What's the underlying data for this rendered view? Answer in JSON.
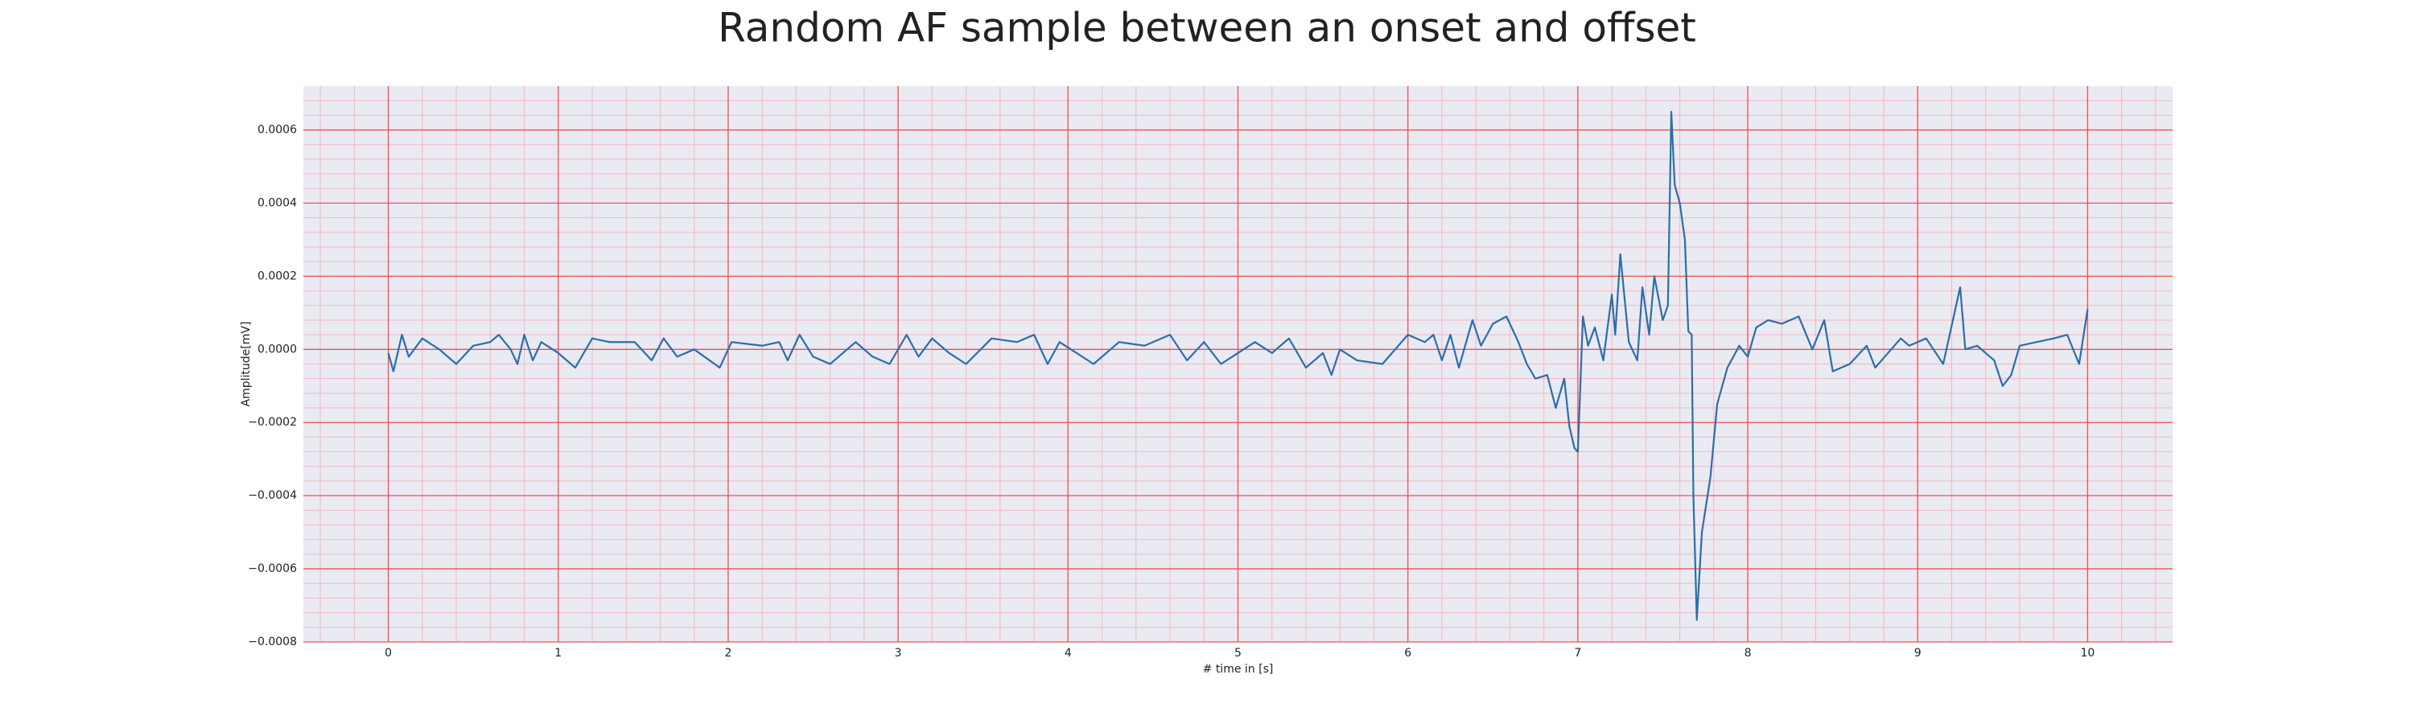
{
  "chart_data": {
    "type": "line",
    "title": "Random AF sample between an onset and offset",
    "xlabel": "# time in [s]",
    "ylabel": "Amplitude[mV]",
    "x": [
      0,
      0.03,
      0.08,
      0.12,
      0.2,
      0.3,
      0.4,
      0.5,
      0.6,
      0.65,
      0.72,
      0.76,
      0.8,
      0.85,
      0.9,
      1.0,
      1.1,
      1.2,
      1.3,
      1.45,
      1.55,
      1.62,
      1.7,
      1.8,
      1.95,
      2.02,
      2.2,
      2.3,
      2.35,
      2.42,
      2.5,
      2.6,
      2.75,
      2.85,
      2.95,
      3.05,
      3.12,
      3.2,
      3.3,
      3.4,
      3.55,
      3.7,
      3.8,
      3.88,
      3.95,
      4.05,
      4.15,
      4.3,
      4.45,
      4.6,
      4.7,
      4.8,
      4.9,
      5.1,
      5.2,
      5.3,
      5.4,
      5.5,
      5.55,
      5.6,
      5.7,
      5.85,
      6.0,
      6.1,
      6.15,
      6.2,
      6.25,
      6.3,
      6.38,
      6.43,
      6.5,
      6.58,
      6.65,
      6.7,
      6.75,
      6.82,
      6.87,
      6.92,
      6.95,
      6.98,
      7.0,
      7.03,
      7.06,
      7.1,
      7.15,
      7.2,
      7.22,
      7.25,
      7.3,
      7.35,
      7.38,
      7.42,
      7.45,
      7.5,
      7.53,
      7.55,
      7.57,
      7.6,
      7.63,
      7.65,
      7.67,
      7.68,
      7.7,
      7.73,
      7.78,
      7.82,
      7.88,
      7.95,
      8.0,
      8.05,
      8.12,
      8.2,
      8.3,
      8.38,
      8.45,
      8.5,
      8.6,
      8.7,
      8.75,
      8.9,
      8.95,
      9.05,
      9.15,
      9.25,
      9.28,
      9.35,
      9.45,
      9.5,
      9.55,
      9.6,
      9.7,
      9.8,
      9.88,
      9.95,
      10.0
    ],
    "series": [
      {
        "color": "#2a6fa8",
        "values": [
          -1e-05,
          -6e-05,
          4e-05,
          -2e-05,
          3e-05,
          0.0,
          -4e-05,
          1e-05,
          2e-05,
          4e-05,
          0.0,
          -4e-05,
          4e-05,
          -3e-05,
          2e-05,
          -1e-05,
          -5e-05,
          3e-05,
          2e-05,
          2e-05,
          -3e-05,
          3e-05,
          -2e-05,
          0.0,
          -5e-05,
          2e-05,
          1e-05,
          2e-05,
          -3e-05,
          4e-05,
          -2e-05,
          -4e-05,
          2e-05,
          -2e-05,
          -4e-05,
          4e-05,
          -2e-05,
          3e-05,
          -1e-05,
          -4e-05,
          3e-05,
          2e-05,
          4e-05,
          -4e-05,
          2e-05,
          -1e-05,
          -4e-05,
          2e-05,
          1e-05,
          4e-05,
          -3e-05,
          2e-05,
          -4e-05,
          2e-05,
          -1e-05,
          3e-05,
          -5e-05,
          -1e-05,
          -7e-05,
          0.0,
          -3e-05,
          -4e-05,
          4e-05,
          2e-05,
          4e-05,
          -3e-05,
          4e-05,
          -5e-05,
          8e-05,
          1e-05,
          7e-05,
          9e-05,
          2e-05,
          -4e-05,
          -8e-05,
          -7e-05,
          -0.00016,
          -8e-05,
          -0.00021,
          -0.00027,
          -0.00028,
          9e-05,
          1e-05,
          6e-05,
          -3e-05,
          0.00015,
          4e-05,
          0.00026,
          2e-05,
          -3e-05,
          0.00017,
          4e-05,
          0.0002,
          8e-05,
          0.00012,
          0.00065,
          0.00045,
          0.0004,
          0.0003,
          5e-05,
          4e-05,
          -0.0004,
          -0.00074,
          -0.0005,
          -0.00035,
          -0.00015,
          -5e-05,
          1e-05,
          -2e-05,
          6e-05,
          8e-05,
          7e-05,
          9e-05,
          0.0,
          8e-05,
          -6e-05,
          -4e-05,
          1e-05,
          -5e-05,
          3e-05,
          1e-05,
          3e-05,
          -4e-05,
          0.00017,
          0.0,
          1e-05,
          -3e-05,
          -0.0001,
          -7e-05,
          1e-05,
          2e-05,
          3e-05,
          4e-05,
          -4e-05,
          0.00011
        ]
      }
    ],
    "xlim": [
      -0.5,
      10.5
    ],
    "ylim": [
      -0.0008,
      0.00072
    ],
    "xticks": [
      0,
      1,
      2,
      3,
      4,
      5,
      6,
      7,
      8,
      9,
      10
    ],
    "yticks": [
      {
        "value": -0.0008,
        "label": "−0.0008"
      },
      {
        "value": -0.0006,
        "label": "−0.0006"
      },
      {
        "value": -0.0004,
        "label": "−0.0004"
      },
      {
        "value": -0.0002,
        "label": "−0.0002"
      },
      {
        "value": 0,
        "label": "0.0000"
      },
      0.0002,
      0.0004,
      0.0006
    ],
    "grid": true,
    "minor_grid": true
  }
}
